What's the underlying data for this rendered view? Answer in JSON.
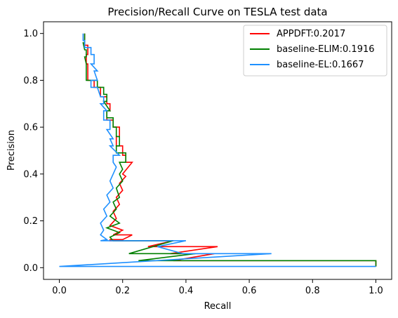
{
  "chart_data": {
    "type": "line",
    "title": "Precision/Recall Curve on TESLA test data",
    "xlabel": "Recall",
    "ylabel": "Precision",
    "xlim": [
      -0.05,
      1.05
    ],
    "ylim": [
      -0.05,
      1.05
    ],
    "xticks": [
      0.0,
      0.2,
      0.4,
      0.6,
      0.8,
      1.0
    ],
    "yticks": [
      0.0,
      0.2,
      0.4,
      0.6,
      0.8,
      1.0
    ],
    "xtick_labels": [
      "0.0",
      "0.2",
      "0.4",
      "0.6",
      "0.8",
      "1.0"
    ],
    "ytick_labels": [
      "0.0",
      "0.2",
      "0.4",
      "0.6",
      "0.8",
      "1.0"
    ],
    "grid": false,
    "legend_position": "top-right",
    "series": [
      {
        "name": "APPDFT:0.2017",
        "color": "#ff0000",
        "points": [
          [
            0.08,
            1.0
          ],
          [
            0.08,
            0.95
          ],
          [
            0.09,
            0.95
          ],
          [
            0.09,
            0.91
          ],
          [
            0.085,
            0.91
          ],
          [
            0.085,
            0.87
          ],
          [
            0.09,
            0.87
          ],
          [
            0.09,
            0.8
          ],
          [
            0.11,
            0.8
          ],
          [
            0.11,
            0.77
          ],
          [
            0.13,
            0.77
          ],
          [
            0.13,
            0.73
          ],
          [
            0.15,
            0.73
          ],
          [
            0.15,
            0.7
          ],
          [
            0.16,
            0.7
          ],
          [
            0.16,
            0.67
          ],
          [
            0.15,
            0.67
          ],
          [
            0.15,
            0.63
          ],
          [
            0.17,
            0.63
          ],
          [
            0.17,
            0.6
          ],
          [
            0.19,
            0.6
          ],
          [
            0.19,
            0.56
          ],
          [
            0.18,
            0.56
          ],
          [
            0.18,
            0.52
          ],
          [
            0.2,
            0.52
          ],
          [
            0.2,
            0.48
          ],
          [
            0.21,
            0.48
          ],
          [
            0.21,
            0.45
          ],
          [
            0.23,
            0.45
          ],
          [
            0.2,
            0.4
          ],
          [
            0.21,
            0.39
          ],
          [
            0.19,
            0.36
          ],
          [
            0.2,
            0.33
          ],
          [
            0.18,
            0.3
          ],
          [
            0.19,
            0.27
          ],
          [
            0.17,
            0.24
          ],
          [
            0.18,
            0.21
          ],
          [
            0.16,
            0.18
          ],
          [
            0.2,
            0.16
          ],
          [
            0.17,
            0.14
          ],
          [
            0.23,
            0.14
          ],
          [
            0.2,
            0.12
          ],
          [
            0.16,
            0.12
          ],
          [
            0.16,
            0.115
          ],
          [
            0.36,
            0.115
          ],
          [
            0.28,
            0.09
          ],
          [
            0.5,
            0.09
          ],
          [
            0.35,
            0.06
          ],
          [
            0.49,
            0.06
          ],
          [
            0.36,
            0.03
          ],
          [
            1.0,
            0.03
          ],
          [
            1.0,
            0.005
          ]
        ]
      },
      {
        "name": "baseline-ELIM:0.1916",
        "color": "#008000",
        "points": [
          [
            0.08,
            1.0
          ],
          [
            0.08,
            0.96
          ],
          [
            0.075,
            0.96
          ],
          [
            0.08,
            0.93
          ],
          [
            0.085,
            0.93
          ],
          [
            0.085,
            0.9
          ],
          [
            0.08,
            0.9
          ],
          [
            0.085,
            0.87
          ],
          [
            0.085,
            0.8
          ],
          [
            0.12,
            0.8
          ],
          [
            0.12,
            0.77
          ],
          [
            0.14,
            0.77
          ],
          [
            0.14,
            0.74
          ],
          [
            0.15,
            0.74
          ],
          [
            0.15,
            0.71
          ],
          [
            0.14,
            0.71
          ],
          [
            0.16,
            0.67
          ],
          [
            0.15,
            0.67
          ],
          [
            0.15,
            0.64
          ],
          [
            0.17,
            0.64
          ],
          [
            0.17,
            0.6
          ],
          [
            0.18,
            0.6
          ],
          [
            0.18,
            0.56
          ],
          [
            0.19,
            0.56
          ],
          [
            0.19,
            0.52
          ],
          [
            0.18,
            0.52
          ],
          [
            0.18,
            0.49
          ],
          [
            0.21,
            0.49
          ],
          [
            0.21,
            0.45
          ],
          [
            0.19,
            0.45
          ],
          [
            0.2,
            0.42
          ],
          [
            0.19,
            0.4
          ],
          [
            0.2,
            0.37
          ],
          [
            0.18,
            0.34
          ],
          [
            0.19,
            0.3
          ],
          [
            0.17,
            0.28
          ],
          [
            0.18,
            0.25
          ],
          [
            0.16,
            0.22
          ],
          [
            0.19,
            0.19
          ],
          [
            0.15,
            0.17
          ],
          [
            0.19,
            0.15
          ],
          [
            0.16,
            0.13
          ],
          [
            0.17,
            0.115
          ],
          [
            0.36,
            0.115
          ],
          [
            0.22,
            0.06
          ],
          [
            0.43,
            0.06
          ],
          [
            0.25,
            0.03
          ],
          [
            1.0,
            0.03
          ],
          [
            1.0,
            0.005
          ]
        ]
      },
      {
        "name": "baseline-EL:0.1667",
        "color": "#1e90ff",
        "points": [
          [
            0.075,
            1.0
          ],
          [
            0.075,
            0.97
          ],
          [
            0.08,
            0.97
          ],
          [
            0.08,
            0.94
          ],
          [
            0.1,
            0.94
          ],
          [
            0.1,
            0.91
          ],
          [
            0.11,
            0.91
          ],
          [
            0.11,
            0.87
          ],
          [
            0.1,
            0.87
          ],
          [
            0.12,
            0.84
          ],
          [
            0.11,
            0.84
          ],
          [
            0.12,
            0.8
          ],
          [
            0.1,
            0.8
          ],
          [
            0.1,
            0.77
          ],
          [
            0.12,
            0.77
          ],
          [
            0.13,
            0.73
          ],
          [
            0.14,
            0.73
          ],
          [
            0.14,
            0.7
          ],
          [
            0.13,
            0.7
          ],
          [
            0.15,
            0.67
          ],
          [
            0.14,
            0.67
          ],
          [
            0.14,
            0.63
          ],
          [
            0.16,
            0.63
          ],
          [
            0.16,
            0.59
          ],
          [
            0.15,
            0.59
          ],
          [
            0.17,
            0.55
          ],
          [
            0.16,
            0.55
          ],
          [
            0.17,
            0.52
          ],
          [
            0.16,
            0.52
          ],
          [
            0.19,
            0.48
          ],
          [
            0.17,
            0.48
          ],
          [
            0.17,
            0.45
          ],
          [
            0.18,
            0.43
          ],
          [
            0.17,
            0.4
          ],
          [
            0.16,
            0.37
          ],
          [
            0.17,
            0.34
          ],
          [
            0.15,
            0.31
          ],
          [
            0.16,
            0.28
          ],
          [
            0.14,
            0.25
          ],
          [
            0.15,
            0.22
          ],
          [
            0.13,
            0.19
          ],
          [
            0.14,
            0.16
          ],
          [
            0.13,
            0.14
          ],
          [
            0.15,
            0.12
          ],
          [
            0.13,
            0.115
          ],
          [
            0.4,
            0.115
          ],
          [
            0.31,
            0.09
          ],
          [
            0.39,
            0.06
          ],
          [
            0.67,
            0.06
          ],
          [
            0.0,
            0.005
          ],
          [
            1.0,
            0.005
          ]
        ]
      }
    ]
  }
}
